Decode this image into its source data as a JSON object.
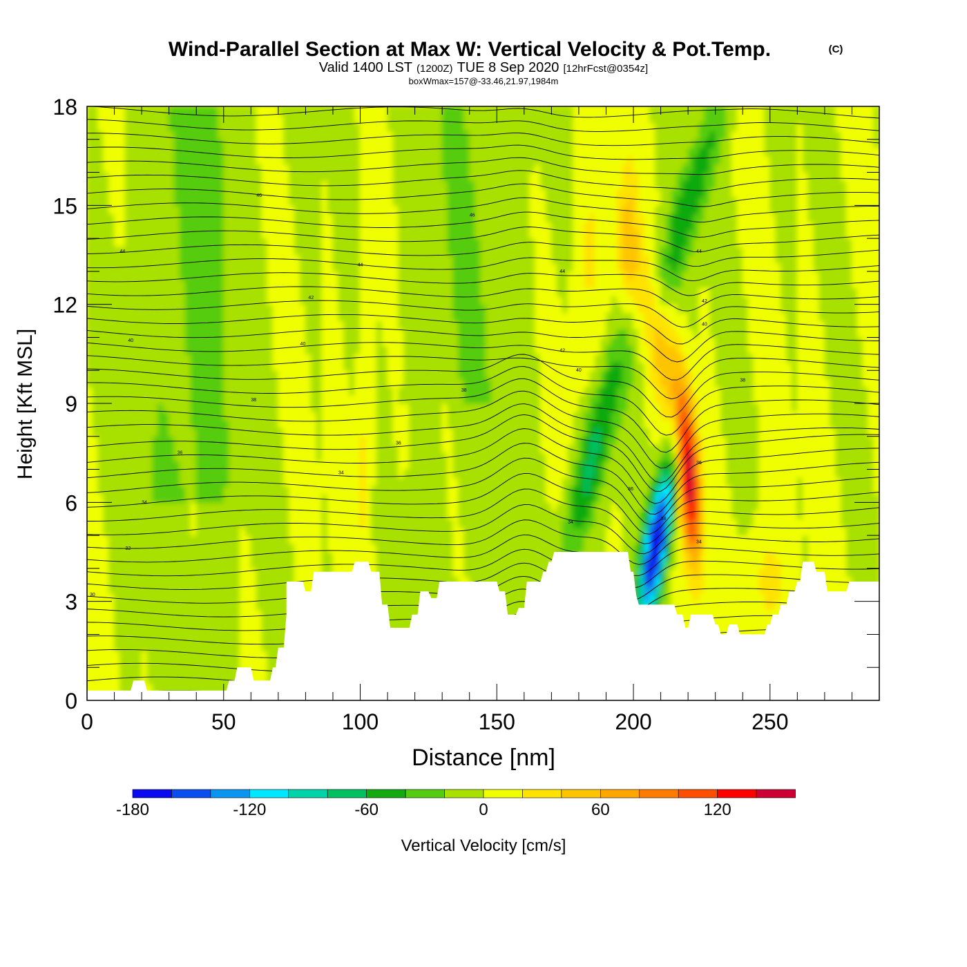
{
  "title": {
    "main": "Wind-Parallel Section at Max W: Vertical Velocity & Pot.Temp.",
    "copyright": "(C)",
    "valid_prefix": "Valid 1400 LST",
    "valid_utc": "(1200Z)",
    "valid_date": "TUE 8 Sep 2020",
    "forecast": "[12hrFcst@0354z]",
    "box_wmax": "boxWmax=157@-33.46,21.97,1984m"
  },
  "chart_data": {
    "type": "heatmap",
    "xlabel": "Distance [nm]",
    "ylabel": "Height [Kft MSL]",
    "xlim": [
      0,
      290
    ],
    "ylim": [
      0,
      18
    ],
    "x_ticks": [
      0,
      50,
      100,
      150,
      200,
      250
    ],
    "y_ticks": [
      0,
      3,
      6,
      9,
      12,
      15,
      18
    ],
    "grid": false,
    "colorbar": {
      "label": "Vertical Velocity [cm/s]",
      "bounds": [
        -180,
        -160,
        -140,
        -120,
        -100,
        -80,
        -60,
        -40,
        -20,
        0,
        20,
        40,
        60,
        80,
        100,
        120,
        140,
        160
      ],
      "tick_labels": [
        -180,
        -120,
        -60,
        0,
        60,
        120
      ],
      "colors": [
        "#0a0af0",
        "#0a4ef0",
        "#0a96f0",
        "#00e8ff",
        "#00d4a8",
        "#00c060",
        "#11aa11",
        "#55cc11",
        "#a8e000",
        "#f0ff00",
        "#ffe200",
        "#ffc400",
        "#ffa600",
        "#ff7c00",
        "#ff4e00",
        "#ff0000",
        "#cc0033"
      ]
    },
    "contour_labels": [
      {
        "x": 2,
        "y": 3.2,
        "text": "30"
      },
      {
        "x": 15,
        "y": 4.6,
        "text": "32"
      },
      {
        "x": 21,
        "y": 6.0,
        "text": "34"
      },
      {
        "x": 34,
        "y": 7.5,
        "text": "36"
      },
      {
        "x": 61,
        "y": 9.1,
        "text": "38"
      },
      {
        "x": 79,
        "y": 10.8,
        "text": "40"
      },
      {
        "x": 82,
        "y": 12.2,
        "text": "42"
      },
      {
        "x": 16,
        "y": 10.9,
        "text": "40"
      },
      {
        "x": 13,
        "y": 13.6,
        "text": "44"
      },
      {
        "x": 63,
        "y": 15.3,
        "text": "46"
      },
      {
        "x": 100,
        "y": 13.2,
        "text": "44"
      },
      {
        "x": 141,
        "y": 14.7,
        "text": "46"
      },
      {
        "x": 93,
        "y": 6.9,
        "text": "34"
      },
      {
        "x": 114,
        "y": 7.8,
        "text": "36"
      },
      {
        "x": 138,
        "y": 9.4,
        "text": "38"
      },
      {
        "x": 174,
        "y": 10.6,
        "text": "42"
      },
      {
        "x": 180,
        "y": 10.0,
        "text": "40"
      },
      {
        "x": 174,
        "y": 13.0,
        "text": "44"
      },
      {
        "x": 177,
        "y": 5.4,
        "text": "34"
      },
      {
        "x": 199,
        "y": 6.4,
        "text": "36"
      },
      {
        "x": 211,
        "y": 5.5,
        "text": "38"
      },
      {
        "x": 224,
        "y": 7.2,
        "text": "36"
      },
      {
        "x": 224,
        "y": 4.8,
        "text": "34"
      },
      {
        "x": 224,
        "y": 13.6,
        "text": "44"
      },
      {
        "x": 226,
        "y": 12.1,
        "text": "42"
      },
      {
        "x": 226,
        "y": 11.4,
        "text": "40"
      },
      {
        "x": 240,
        "y": 9.7,
        "text": "38"
      }
    ],
    "terrain": [
      [
        0,
        0.3
      ],
      [
        16,
        0.3
      ],
      [
        17,
        0.6
      ],
      [
        21,
        0.6
      ],
      [
        22,
        0.3
      ],
      [
        51,
        0.3
      ],
      [
        52,
        0.6
      ],
      [
        54,
        0.6
      ],
      [
        55,
        1.0
      ],
      [
        60,
        1.0
      ],
      [
        61,
        0.6
      ],
      [
        67,
        0.6
      ],
      [
        68,
        1.0
      ],
      [
        69,
        1.0
      ],
      [
        70,
        1.6
      ],
      [
        72,
        1.6
      ],
      [
        73,
        2.6
      ],
      [
        73,
        3.6
      ],
      [
        79,
        3.6
      ],
      [
        80,
        3.3
      ],
      [
        82,
        3.3
      ],
      [
        83,
        3.9
      ],
      [
        97,
        3.9
      ],
      [
        98,
        4.2
      ],
      [
        103,
        4.2
      ],
      [
        104,
        3.9
      ],
      [
        107,
        3.9
      ],
      [
        108,
        2.9
      ],
      [
        110,
        2.9
      ],
      [
        111,
        2.2
      ],
      [
        118,
        2.2
      ],
      [
        119,
        2.6
      ],
      [
        121,
        2.6
      ],
      [
        122,
        3.3
      ],
      [
        125,
        3.3
      ],
      [
        126,
        3.1
      ],
      [
        128,
        3.1
      ],
      [
        129,
        3.6
      ],
      [
        150,
        3.6
      ],
      [
        151,
        3.3
      ],
      [
        153,
        3.3
      ],
      [
        154,
        2.6
      ],
      [
        157,
        2.6
      ],
      [
        158,
        2.8
      ],
      [
        160,
        2.8
      ],
      [
        161,
        3.6
      ],
      [
        166,
        3.6
      ],
      [
        167,
        3.9
      ],
      [
        168,
        3.9
      ],
      [
        169,
        4.2
      ],
      [
        170,
        4.2
      ],
      [
        171,
        4.5
      ],
      [
        198,
        4.5
      ],
      [
        199,
        3.9
      ],
      [
        200,
        3.9
      ],
      [
        201,
        3.2
      ],
      [
        202,
        2.9
      ],
      [
        215,
        2.9
      ],
      [
        216,
        2.6
      ],
      [
        218,
        2.6
      ],
      [
        219,
        2.2
      ],
      [
        220,
        2.2
      ],
      [
        221,
        2.6
      ],
      [
        229,
        2.6
      ],
      [
        230,
        2.3
      ],
      [
        231,
        2.3
      ],
      [
        232,
        2.0
      ],
      [
        234,
        2.0
      ],
      [
        235,
        2.3
      ],
      [
        238,
        2.3
      ],
      [
        239,
        2.0
      ],
      [
        248,
        2.0
      ],
      [
        249,
        2.3
      ],
      [
        250,
        2.3
      ],
      [
        251,
        2.6
      ],
      [
        253,
        2.6
      ],
      [
        254,
        2.9
      ],
      [
        256,
        2.9
      ],
      [
        257,
        3.3
      ],
      [
        259,
        3.3
      ],
      [
        260,
        3.6
      ],
      [
        261,
        3.6
      ],
      [
        262,
        4.2
      ],
      [
        266,
        4.2
      ],
      [
        267,
        3.9
      ],
      [
        270,
        3.9
      ],
      [
        271,
        3.3
      ],
      [
        278,
        3.3
      ],
      [
        279,
        3.6
      ],
      [
        290,
        3.6
      ]
    ]
  }
}
